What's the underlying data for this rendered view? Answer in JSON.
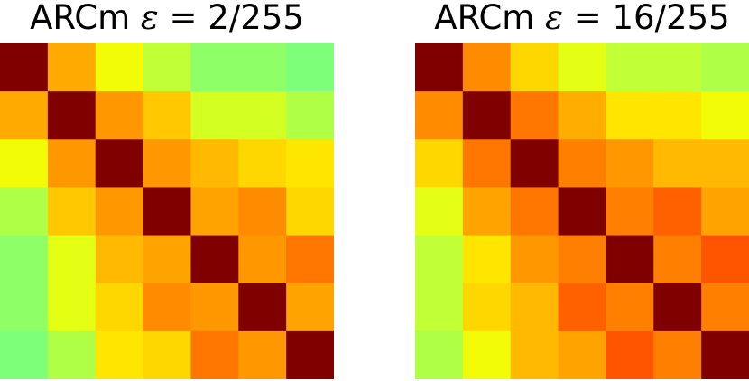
{
  "chart_data": [
    {
      "type": "heatmap",
      "title": "ARCm ε = 2/255",
      "title_prefix": "ARCm",
      "title_symbol": "ε",
      "title_suffix": "= 2/255",
      "rows": 7,
      "cols": 7,
      "colors": [
        [
          "#800000",
          "#ffaa00",
          "#f1fc06",
          "#c1ff36",
          "#8fff68",
          "#8fff68",
          "#7dff7a"
        ],
        [
          "#ffaa00",
          "#800000",
          "#ff9700",
          "#ffc800",
          "#d4ff23",
          "#d4ff23",
          "#b0ff47"
        ],
        [
          "#f1fc06",
          "#ff9700",
          "#800000",
          "#ff9700",
          "#ffb900",
          "#ffd700",
          "#ffe600"
        ],
        [
          "#b0ff47",
          "#ffc800",
          "#ff9700",
          "#800000",
          "#ffa300",
          "#ff8c00",
          "#ffd700"
        ],
        [
          "#8fff68",
          "#e4ff13",
          "#ffb900",
          "#ffa300",
          "#800000",
          "#ff9700",
          "#ff7600"
        ],
        [
          "#8fff68",
          "#e4ff13",
          "#ffd700",
          "#ff8c00",
          "#ff9700",
          "#800000",
          "#ffa300"
        ],
        [
          "#7dff7a",
          "#b0ff47",
          "#ffe600",
          "#ffd700",
          "#ff7600",
          "#ff9700",
          "#800000"
        ]
      ]
    },
    {
      "type": "heatmap",
      "title": "ARCm ε = 16/255",
      "title_prefix": "ARCm",
      "title_symbol": "ε",
      "title_suffix": "= 16/255",
      "rows": 7,
      "cols": 7,
      "colors": [
        [
          "#800000",
          "#ff8c00",
          "#ffd700",
          "#e4ff13",
          "#c1ff36",
          "#c1ff36",
          "#b0ff47"
        ],
        [
          "#ff8c00",
          "#800000",
          "#ff7600",
          "#ffae00",
          "#ffe600",
          "#ffe600",
          "#f1fc06"
        ],
        [
          "#ffd700",
          "#ff7600",
          "#800000",
          "#ff8000",
          "#ff9700",
          "#ffb900",
          "#ffb900"
        ],
        [
          "#e4ff13",
          "#ffa300",
          "#ff7600",
          "#800000",
          "#ff8000",
          "#ff6000",
          "#ffa300"
        ],
        [
          "#c1ff36",
          "#ffe600",
          "#ff9700",
          "#ff8000",
          "#800000",
          "#ff8000",
          "#ff5500"
        ],
        [
          "#c1ff36",
          "#ffd700",
          "#ffb900",
          "#ff6000",
          "#ff8000",
          "#800000",
          "#ff8000"
        ],
        [
          "#b0ff47",
          "#f1fc06",
          "#ffb900",
          "#ffa300",
          "#ff5500",
          "#ff8000",
          "#800000"
        ]
      ]
    }
  ]
}
